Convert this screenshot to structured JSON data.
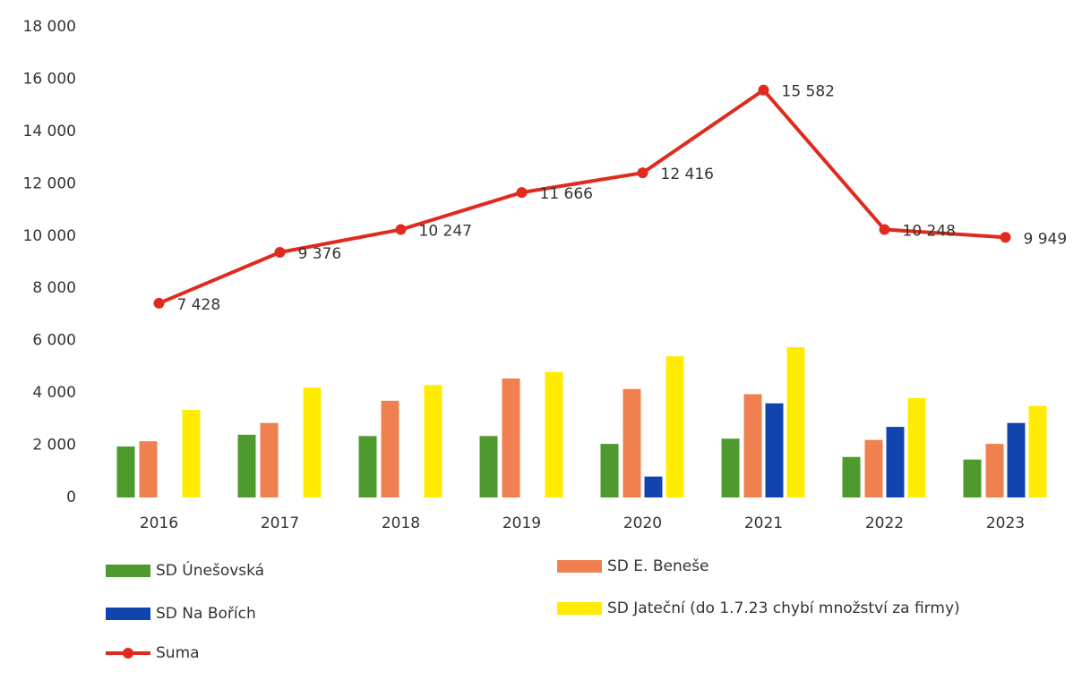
{
  "chart_data": {
    "type": "bar+line",
    "categories": [
      "2016",
      "2017",
      "2018",
      "2019",
      "2020",
      "2021",
      "2022",
      "2023"
    ],
    "ylim": [
      0,
      18000
    ],
    "yticks": [
      0,
      {
        "value": 2000,
        "label": "2 000"
      },
      {
        "value": 4000,
        "label": "4 000"
      },
      {
        "value": 6000,
        "label": "6 000"
      },
      {
        "value": 8000,
        "label": "8 000"
      },
      {
        "value": 10000,
        "label": "10 000"
      },
      {
        "value": 12000,
        "label": "12 000"
      },
      {
        "value": 14000,
        "label": "14 000"
      },
      {
        "value": 16000,
        "label": "16 000"
      },
      {
        "value": 18000,
        "label": "18 000"
      }
    ],
    "series": [
      {
        "name": "SD Únešovská",
        "type": "bar",
        "color": "#4f9a2f",
        "values": [
          1950,
          2400,
          2350,
          2350,
          2050,
          2250,
          1550,
          1450
        ]
      },
      {
        "name": "SD E. Beneše",
        "type": "bar",
        "color": "#f0804f",
        "values": [
          2150,
          2850,
          3700,
          4550,
          4150,
          3950,
          2200,
          2050
        ]
      },
      {
        "name": "SD Na Bořích",
        "type": "bar",
        "color": "#1244b0",
        "values": [
          null,
          null,
          null,
          null,
          800,
          3600,
          2700,
          2850
        ]
      },
      {
        "name": "SD Jateční (do 1.7.23 chybí množství za firmy)",
        "type": "bar",
        "color": "#ffec00",
        "values": [
          3350,
          4200,
          4300,
          4800,
          5400,
          5750,
          3800,
          3500
        ]
      },
      {
        "name": "Suma",
        "type": "line",
        "color": "#e02a1e",
        "values": [
          7428,
          9376,
          10247,
          11666,
          12416,
          15582,
          10248,
          9949
        ],
        "value_labels": [
          "7 428",
          "9 376",
          "10 247",
          "11 666",
          "12 416",
          "15 582",
          "10 248",
          "9 949"
        ]
      }
    ]
  }
}
